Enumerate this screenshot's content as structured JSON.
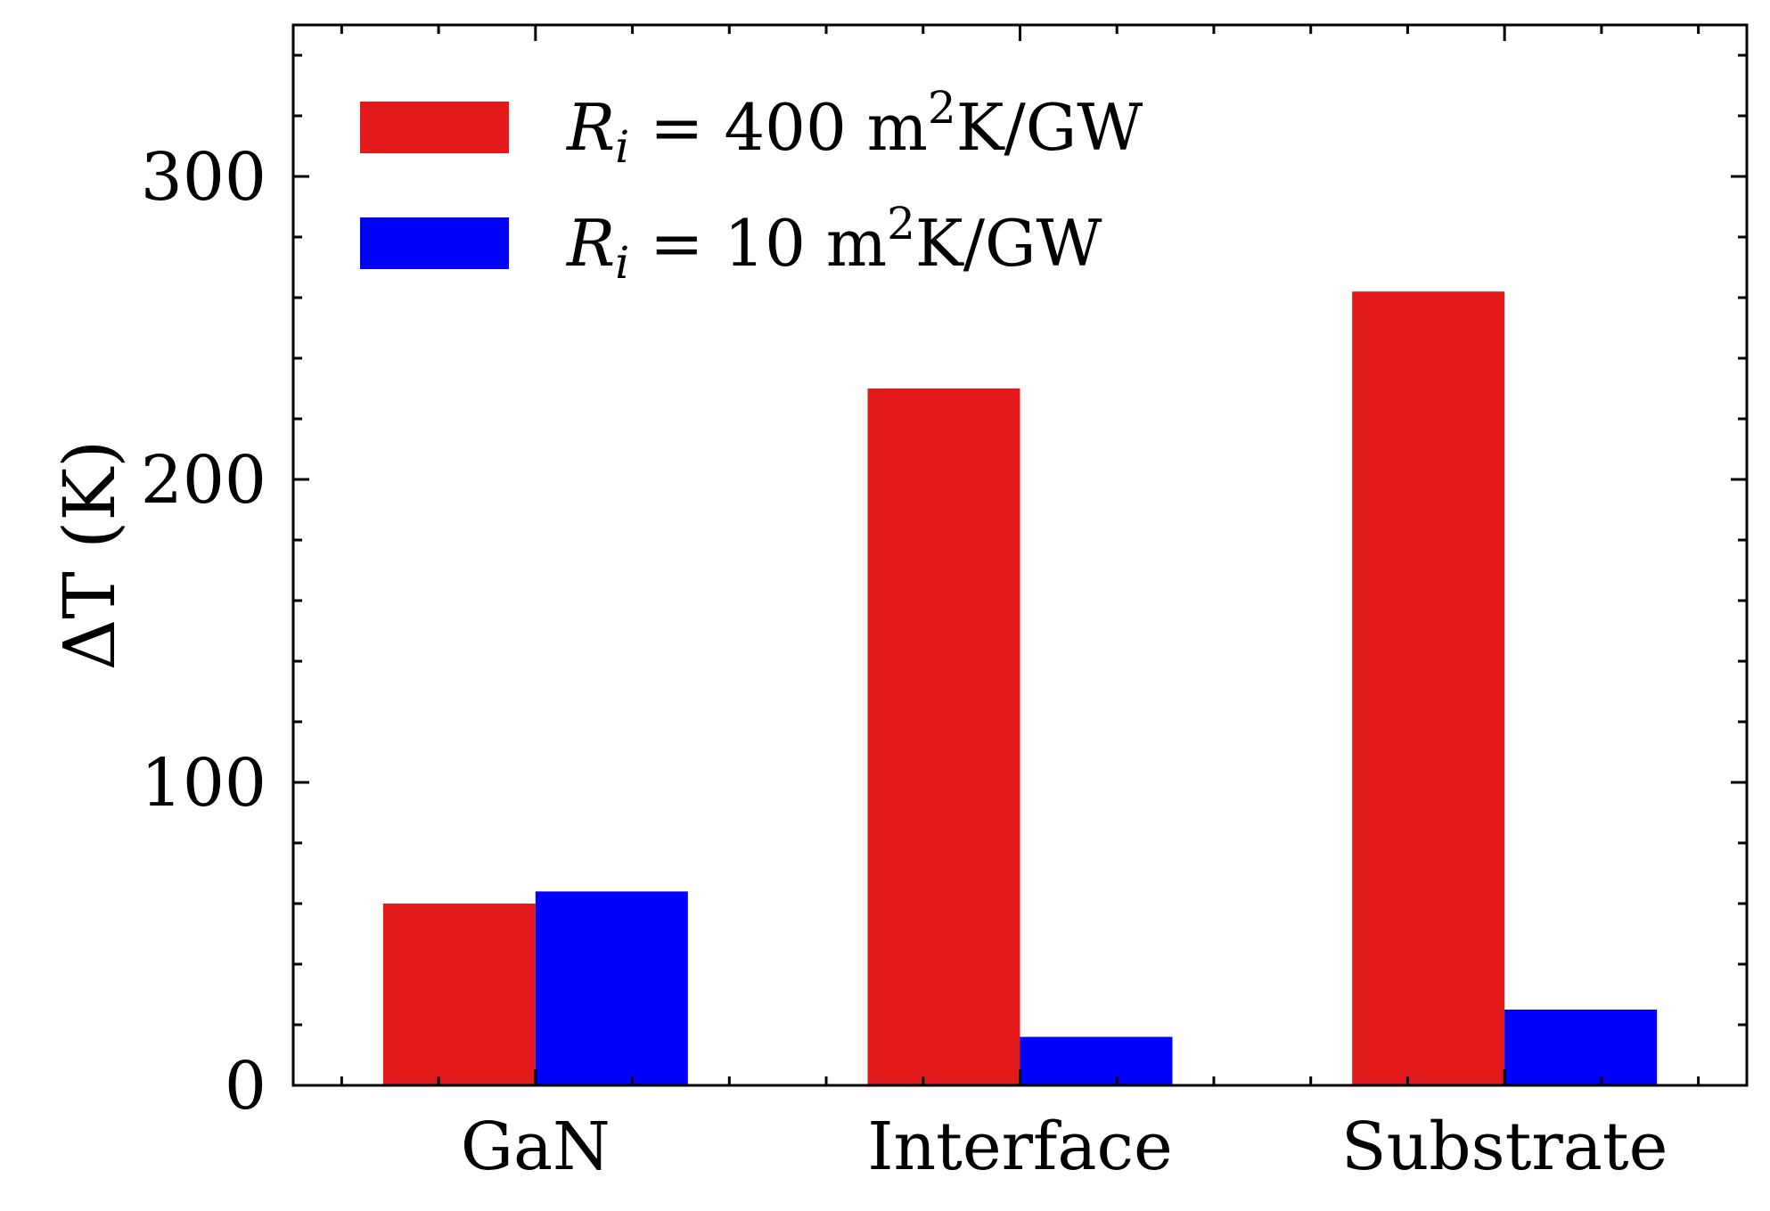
{
  "chart_data": {
    "type": "bar",
    "categories": [
      "GaN",
      "Interface",
      "Substrate"
    ],
    "series": [
      {
        "name": "R_i = 400 m²K/GW",
        "values": [
          60,
          230,
          262
        ],
        "color": "#e31a1c"
      },
      {
        "name": "R_i = 10 m²K/GW",
        "values": [
          64,
          16,
          25
        ],
        "color": "#0000ff"
      }
    ],
    "legend": {
      "entries": [
        {
          "base": "R",
          "sub": "i",
          "rest": " = 400 m",
          "sup": "2",
          "tail": "K/GW"
        },
        {
          "base": "R",
          "sub": "i",
          "rest": " = 10 m",
          "sup": "2",
          "tail": "K/GW"
        }
      ],
      "position": "top-left"
    },
    "ylabel": "ΔT (K)",
    "xlabel": "",
    "title": "",
    "ylim": [
      0,
      350
    ],
    "yticks": [
      0,
      100,
      200,
      300
    ],
    "yminor_step": 20,
    "grid": false
  }
}
